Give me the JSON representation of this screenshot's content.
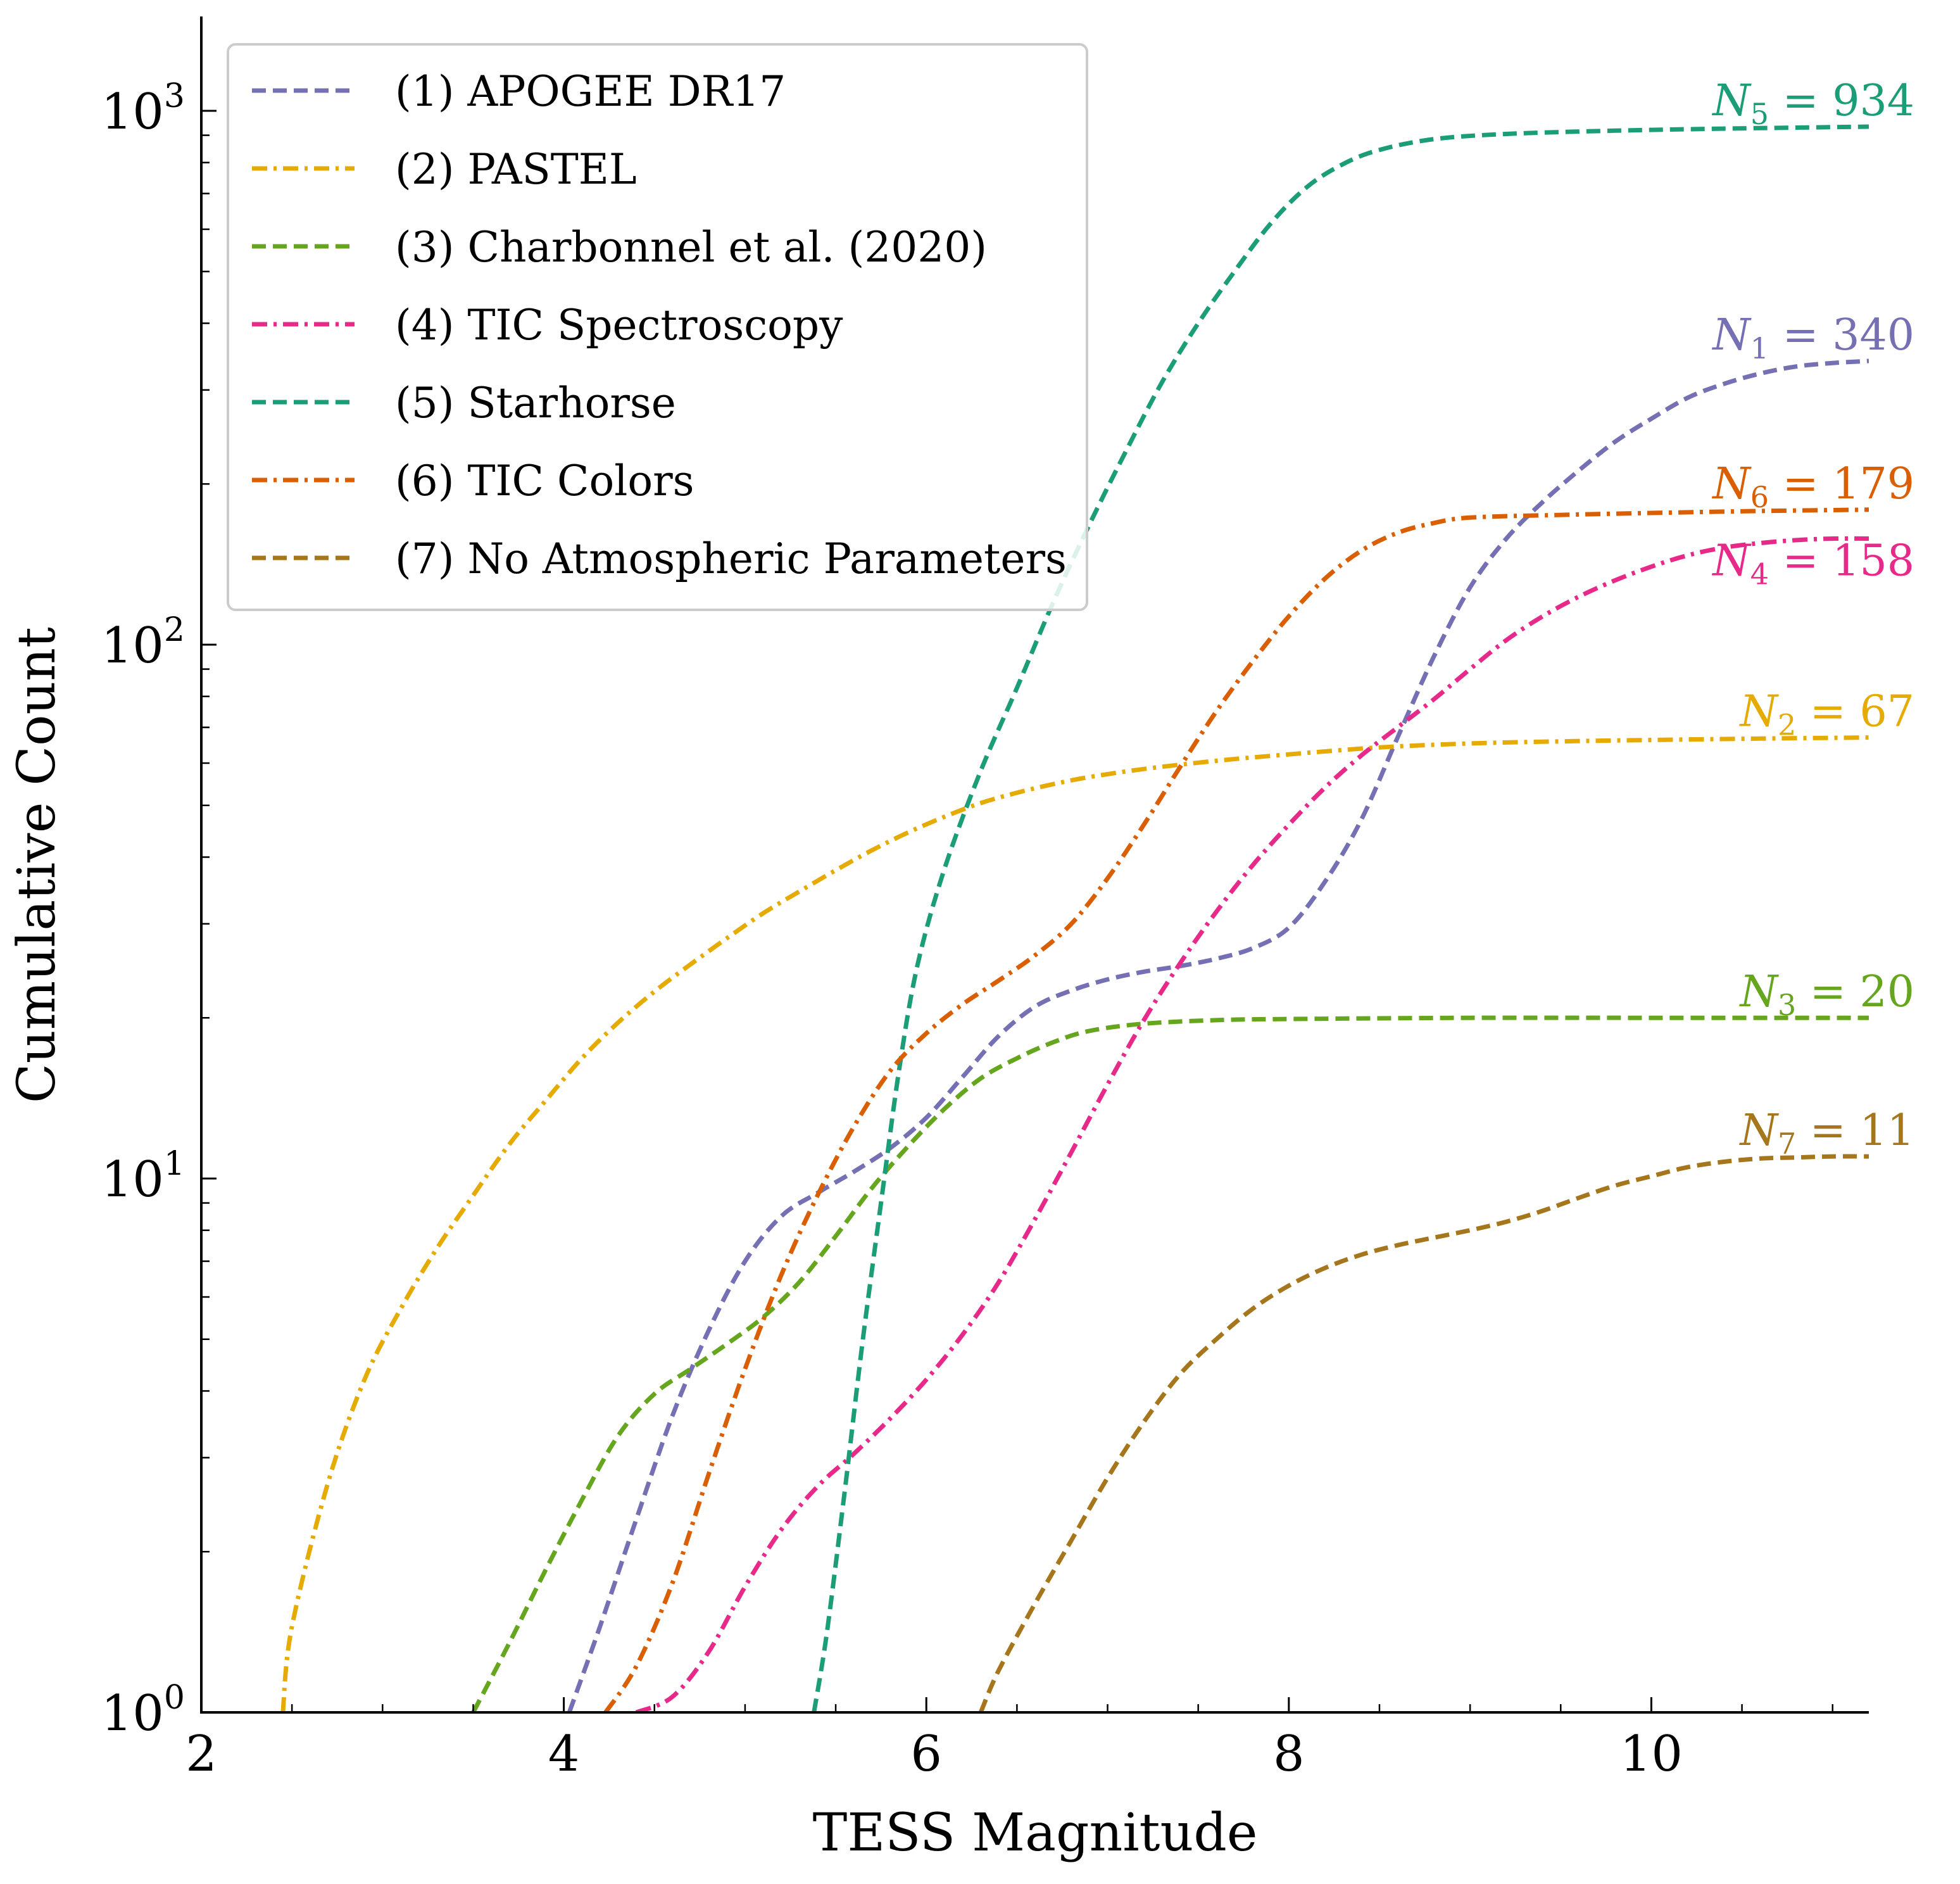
{
  "chart_data": {
    "type": "line",
    "title": "",
    "xlabel": "TESS Magnitude",
    "ylabel": "Cumulative Count",
    "xlim": [
      2,
      11.2
    ],
    "ylim": [
      1,
      1700
    ],
    "yscale": "log",
    "grid": false,
    "legend_position": "top-left",
    "x_ticks": [
      {
        "value": 2,
        "label": "2"
      },
      {
        "value": 4,
        "label": "4"
      },
      {
        "value": 6,
        "label": "6"
      },
      {
        "value": 8,
        "label": "8"
      },
      {
        "value": 10,
        "label": "10"
      }
    ],
    "y_ticks": [
      {
        "value": 1,
        "base": "10",
        "exp": "0"
      },
      {
        "value": 10,
        "base": "10",
        "exp": "1"
      },
      {
        "value": 100,
        "base": "10",
        "exp": "2"
      },
      {
        "value": 1000,
        "base": "10",
        "exp": "3"
      }
    ],
    "series": [
      {
        "name": "(1) APOGEE DR17",
        "color": "#7570b3",
        "style": "dashed",
        "end_label": {
          "sym": "N",
          "sub": "1",
          "text": " = 340"
        },
        "points": [
          [
            4.03,
            1
          ],
          [
            4.2,
            1.45
          ],
          [
            4.4,
            2.3
          ],
          [
            4.6,
            3.6
          ],
          [
            4.8,
            5.2
          ],
          [
            5.0,
            7.0
          ],
          [
            5.2,
            8.5
          ],
          [
            5.4,
            9.4
          ],
          [
            5.6,
            10.3
          ],
          [
            5.8,
            11.4
          ],
          [
            6.0,
            13.0
          ],
          [
            6.2,
            15.5
          ],
          [
            6.4,
            18.5
          ],
          [
            6.6,
            21.0
          ],
          [
            6.8,
            22.5
          ],
          [
            7.0,
            23.6
          ],
          [
            7.2,
            24.4
          ],
          [
            7.4,
            25.0
          ],
          [
            7.6,
            25.8
          ],
          [
            7.8,
            27.0
          ],
          [
            8.0,
            29.5
          ],
          [
            8.2,
            36
          ],
          [
            8.4,
            47
          ],
          [
            8.6,
            67
          ],
          [
            8.8,
            95
          ],
          [
            9.0,
            128
          ],
          [
            9.2,
            158
          ],
          [
            9.4,
            185
          ],
          [
            9.6,
            212
          ],
          [
            9.8,
            240
          ],
          [
            10.0,
            265
          ],
          [
            10.2,
            290
          ],
          [
            10.4,
            308
          ],
          [
            10.6,
            322
          ],
          [
            10.8,
            332
          ],
          [
            11.0,
            337
          ],
          [
            11.2,
            340
          ]
        ]
      },
      {
        "name": "(2) PASTEL",
        "color": "#e6ab02",
        "style": "dashdot",
        "end_label": {
          "sym": "N",
          "sub": "2",
          "text": " = 67"
        },
        "points": [
          [
            2.45,
            1
          ],
          [
            2.5,
            1.45
          ],
          [
            2.7,
            2.7
          ],
          [
            2.9,
            4.2
          ],
          [
            3.1,
            5.7
          ],
          [
            3.3,
            7.4
          ],
          [
            3.5,
            9.3
          ],
          [
            3.7,
            11.6
          ],
          [
            3.9,
            14.0
          ],
          [
            4.1,
            16.8
          ],
          [
            4.3,
            19.6
          ],
          [
            4.5,
            22.4
          ],
          [
            4.7,
            25.2
          ],
          [
            4.9,
            28.2
          ],
          [
            5.1,
            31.4
          ],
          [
            5.3,
            34.5
          ],
          [
            5.5,
            37.8
          ],
          [
            5.7,
            41.2
          ],
          [
            5.9,
            44.5
          ],
          [
            6.1,
            47.6
          ],
          [
            6.3,
            50.5
          ],
          [
            6.5,
            52.8
          ],
          [
            6.7,
            54.8
          ],
          [
            6.9,
            56.5
          ],
          [
            7.2,
            58.5
          ],
          [
            7.6,
            60.6
          ],
          [
            8.0,
            62.3
          ],
          [
            8.5,
            64.2
          ],
          [
            9.0,
            65.3
          ],
          [
            9.5,
            65.9
          ],
          [
            10.0,
            66.3
          ],
          [
            10.6,
            66.7
          ],
          [
            11.2,
            67
          ]
        ]
      },
      {
        "name": "(3) Charbonnel et al. (2020)",
        "color": "#66a61e",
        "style": "dashed",
        "end_label": {
          "sym": "N",
          "sub": "3",
          "text": " = 20"
        },
        "points": [
          [
            3.5,
            1
          ],
          [
            3.7,
            1.35
          ],
          [
            3.9,
            1.85
          ],
          [
            4.1,
            2.5
          ],
          [
            4.3,
            3.3
          ],
          [
            4.5,
            3.95
          ],
          [
            4.7,
            4.4
          ],
          [
            4.9,
            4.9
          ],
          [
            5.1,
            5.5
          ],
          [
            5.3,
            6.4
          ],
          [
            5.5,
            7.8
          ],
          [
            5.7,
            9.6
          ],
          [
            5.9,
            11.5
          ],
          [
            6.1,
            13.5
          ],
          [
            6.3,
            15.4
          ],
          [
            6.5,
            16.8
          ],
          [
            6.7,
            18.0
          ],
          [
            6.9,
            18.9
          ],
          [
            7.2,
            19.5
          ],
          [
            7.6,
            19.8
          ],
          [
            8.0,
            19.9
          ],
          [
            9.0,
            20
          ],
          [
            10.0,
            20
          ],
          [
            11.2,
            20
          ]
        ]
      },
      {
        "name": "(4) TIC Spectroscopy",
        "color": "#e7298a",
        "style": "dashdot",
        "end_label": {
          "sym": "N",
          "sub": "4",
          "text": " = 158"
        },
        "points": [
          [
            4.4,
            1
          ],
          [
            4.6,
            1.07
          ],
          [
            4.8,
            1.3
          ],
          [
            5.0,
            1.72
          ],
          [
            5.2,
            2.2
          ],
          [
            5.4,
            2.65
          ],
          [
            5.6,
            3.05
          ],
          [
            5.8,
            3.55
          ],
          [
            6.0,
            4.2
          ],
          [
            6.2,
            5.1
          ],
          [
            6.4,
            6.4
          ],
          [
            6.6,
            8.4
          ],
          [
            6.8,
            11.2
          ],
          [
            7.0,
            15.0
          ],
          [
            7.2,
            19.8
          ],
          [
            7.4,
            25.3
          ],
          [
            7.6,
            31.6
          ],
          [
            7.8,
            38.6
          ],
          [
            8.0,
            46.0
          ],
          [
            8.2,
            54
          ],
          [
            8.4,
            62
          ],
          [
            8.6,
            70
          ],
          [
            8.8,
            79
          ],
          [
            9.0,
            90
          ],
          [
            9.2,
            102
          ],
          [
            9.4,
            113
          ],
          [
            9.6,
            123
          ],
          [
            9.8,
            132
          ],
          [
            10.0,
            140
          ],
          [
            10.2,
            147
          ],
          [
            10.4,
            152
          ],
          [
            10.6,
            155
          ],
          [
            10.8,
            157
          ],
          [
            11.0,
            158
          ],
          [
            11.2,
            158
          ]
        ]
      },
      {
        "name": "(5) Starhorse",
        "color": "#1b9e77",
        "style": "dashed",
        "end_label": {
          "sym": "N",
          "sub": "5",
          "text": " = 934"
        },
        "points": [
          [
            5.38,
            1
          ],
          [
            5.45,
            1.4
          ],
          [
            5.55,
            2.6
          ],
          [
            5.65,
            5.0
          ],
          [
            5.75,
            9.0
          ],
          [
            5.85,
            16
          ],
          [
            5.95,
            25
          ],
          [
            6.1,
            38
          ],
          [
            6.3,
            58
          ],
          [
            6.5,
            83
          ],
          [
            6.7,
            120
          ],
          [
            6.9,
            168
          ],
          [
            7.1,
            230
          ],
          [
            7.3,
            310
          ],
          [
            7.5,
            400
          ],
          [
            7.7,
            500
          ],
          [
            7.9,
            615
          ],
          [
            8.1,
            720
          ],
          [
            8.3,
            795
          ],
          [
            8.5,
            845
          ],
          [
            8.8,
            885
          ],
          [
            9.2,
            905
          ],
          [
            9.8,
            918
          ],
          [
            10.4,
            926
          ],
          [
            11.2,
            934
          ]
        ]
      },
      {
        "name": "(6) TIC Colors",
        "color": "#d95f02",
        "style": "dashdot",
        "end_label": {
          "sym": "N",
          "sub": "6",
          "text": " = 179"
        },
        "points": [
          [
            4.23,
            1
          ],
          [
            4.4,
            1.22
          ],
          [
            4.6,
            1.75
          ],
          [
            4.8,
            2.8
          ],
          [
            5.0,
            4.4
          ],
          [
            5.2,
            6.6
          ],
          [
            5.4,
            9.3
          ],
          [
            5.6,
            12.5
          ],
          [
            5.8,
            15.9
          ],
          [
            6.0,
            18.7
          ],
          [
            6.2,
            21.2
          ],
          [
            6.4,
            23.5
          ],
          [
            6.6,
            26.2
          ],
          [
            6.8,
            30.0
          ],
          [
            7.0,
            36.5
          ],
          [
            7.2,
            46
          ],
          [
            7.4,
            59
          ],
          [
            7.6,
            75
          ],
          [
            7.8,
            93
          ],
          [
            8.0,
            113
          ],
          [
            8.2,
            133
          ],
          [
            8.4,
            150
          ],
          [
            8.6,
            162
          ],
          [
            8.8,
            169
          ],
          [
            9.0,
            173
          ],
          [
            9.5,
            175
          ],
          [
            10.0,
            176.5
          ],
          [
            10.6,
            178
          ],
          [
            11.2,
            179
          ]
        ]
      },
      {
        "name": "(7) No Atmospheric Parameters",
        "color": "#a6761d",
        "style": "dashed",
        "end_label": {
          "sym": "N",
          "sub": "7",
          "text": " = 11"
        },
        "points": [
          [
            6.3,
            1
          ],
          [
            6.4,
            1.2
          ],
          [
            6.6,
            1.6
          ],
          [
            6.8,
            2.1
          ],
          [
            7.0,
            2.75
          ],
          [
            7.2,
            3.5
          ],
          [
            7.4,
            4.3
          ],
          [
            7.6,
            5.0
          ],
          [
            7.8,
            5.7
          ],
          [
            8.0,
            6.3
          ],
          [
            8.2,
            6.8
          ],
          [
            8.4,
            7.2
          ],
          [
            8.6,
            7.5
          ],
          [
            8.8,
            7.75
          ],
          [
            9.0,
            8.0
          ],
          [
            9.2,
            8.3
          ],
          [
            9.4,
            8.7
          ],
          [
            9.6,
            9.2
          ],
          [
            9.8,
            9.7
          ],
          [
            10.0,
            10.1
          ],
          [
            10.2,
            10.5
          ],
          [
            10.4,
            10.75
          ],
          [
            10.6,
            10.9
          ],
          [
            10.8,
            10.95
          ],
          [
            11.0,
            11
          ],
          [
            11.2,
            11
          ]
        ]
      }
    ]
  }
}
